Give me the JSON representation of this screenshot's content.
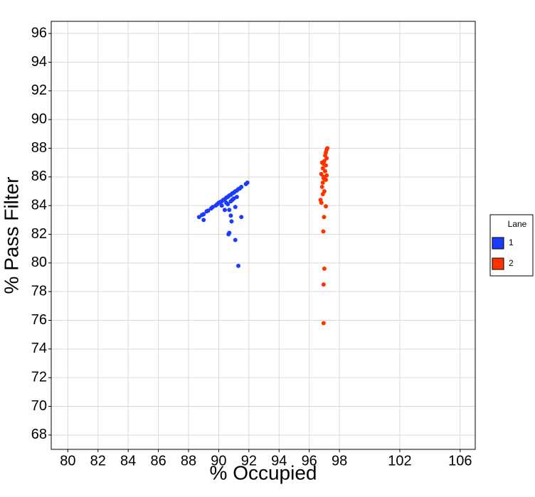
{
  "chart_data": {
    "type": "scatter",
    "x_label": "% Occupied",
    "y_label": "% Pass Filter",
    "xlim": [
      78.9,
      107
    ],
    "ylim": [
      67.0,
      96.85
    ],
    "xticks": [
      80,
      82,
      84,
      86,
      88,
      90,
      92,
      94,
      96,
      98,
      102,
      106
    ],
    "yticks": [
      68,
      70,
      72,
      74,
      76,
      78,
      80,
      82,
      84,
      86,
      88,
      90,
      92,
      94,
      96
    ],
    "grid": true,
    "legend_title": "Lane",
    "legend_position": "right",
    "series": [
      {
        "name": "1",
        "color": "#1a3cff",
        "x": [
          88.7,
          88.9,
          89.0,
          89.2,
          89.3,
          89.5,
          89.6,
          89.8,
          89.9,
          90.0,
          90.1,
          90.2,
          90.3,
          90.4,
          90.5,
          90.6,
          90.7,
          90.8,
          90.9,
          91.0,
          91.1,
          91.2,
          91.3,
          91.4,
          91.5,
          91.8,
          91.9,
          90.2,
          90.5,
          90.8,
          91.0,
          91.2,
          90.6,
          90.9,
          89.0,
          90.4,
          90.7,
          91.1,
          90.8,
          91.5,
          90.85,
          90.7,
          90.65,
          91.1,
          91.3
        ],
        "y": [
          83.2,
          83.35,
          83.4,
          83.6,
          83.65,
          83.8,
          83.9,
          84.0,
          84.1,
          84.2,
          84.25,
          84.3,
          84.4,
          84.45,
          84.55,
          84.6,
          84.7,
          84.75,
          84.85,
          84.9,
          85.0,
          85.05,
          85.15,
          85.2,
          85.3,
          85.5,
          85.6,
          84.0,
          84.2,
          84.3,
          84.5,
          84.6,
          84.1,
          84.4,
          83.0,
          83.7,
          83.7,
          83.9,
          83.3,
          83.2,
          82.9,
          82.1,
          82.0,
          81.6,
          79.8
        ]
      },
      {
        "name": "2",
        "color": "#ff3300",
        "x": [
          96.95,
          96.95,
          97.0,
          96.93,
          96.98,
          97.1,
          96.8,
          96.75,
          96.9,
          97.0,
          96.85,
          96.9,
          97.1,
          96.95,
          96.8,
          97.05,
          96.9,
          97.1,
          96.85,
          97.0,
          97.15,
          97.05,
          97.1,
          97.15,
          97.2,
          97.15,
          96.95,
          96.95
        ],
        "y": [
          75.8,
          78.5,
          79.6,
          82.2,
          83.2,
          83.95,
          84.2,
          84.4,
          84.8,
          85.0,
          85.3,
          85.6,
          85.8,
          86.0,
          86.2,
          86.4,
          86.6,
          86.8,
          87.0,
          87.1,
          87.3,
          87.5,
          87.7,
          87.9,
          88.0,
          86.1,
          86.9,
          85.9
        ]
      }
    ]
  }
}
